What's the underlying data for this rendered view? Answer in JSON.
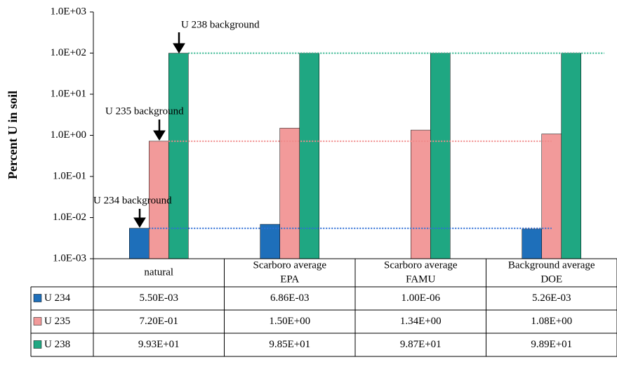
{
  "chart_data": {
    "type": "bar",
    "y_label": "Percent U in soil",
    "log_scale": true,
    "categories": [
      [
        "natural"
      ],
      [
        "Scarboro average",
        "EPA"
      ],
      [
        "Scarboro average",
        "FAMU"
      ],
      [
        "Background average",
        "DOE"
      ]
    ],
    "series": [
      {
        "name": "U 234",
        "color": "#1e6fba",
        "values": [
          0.0055,
          0.00686,
          1e-06,
          0.00526
        ],
        "value_labels": [
          "5.50E-03",
          "6.86E-03",
          "1.00E-06",
          "5.26E-03"
        ]
      },
      {
        "name": "U 235",
        "color": "#f29a9a",
        "values": [
          0.72,
          1.5,
          1.34,
          1.08
        ],
        "value_labels": [
          "7.20E-01",
          "1.50E+00",
          "1.34E+00",
          "1.08E+00"
        ]
      },
      {
        "name": "U 238",
        "color": "#1fa782",
        "values": [
          99.3,
          98.5,
          98.7,
          98.9
        ],
        "value_labels": [
          "9.93E+01",
          "9.85E+01",
          "9.87E+01",
          "9.89E+01"
        ]
      }
    ],
    "ylim": [
      0.001,
      1000
    ],
    "yticks": [
      {
        "value": 0.001,
        "label": "1.0E-03"
      },
      {
        "value": 0.01,
        "label": "1.0E-02"
      },
      {
        "value": 0.1,
        "label": "1.0E-01"
      },
      {
        "value": 1,
        "label": "1.0E+00"
      },
      {
        "value": 10,
        "label": "1.0E+01"
      },
      {
        "value": 100,
        "label": "1.0E+02"
      },
      {
        "value": 1000,
        "label": "1.0E+03"
      }
    ],
    "annotations": [
      "U 238 background",
      "U 235 background",
      "U 234 background"
    ],
    "reference_colors": [
      "#2f6fd6",
      "#f08a8a",
      "#33b58f"
    ]
  }
}
